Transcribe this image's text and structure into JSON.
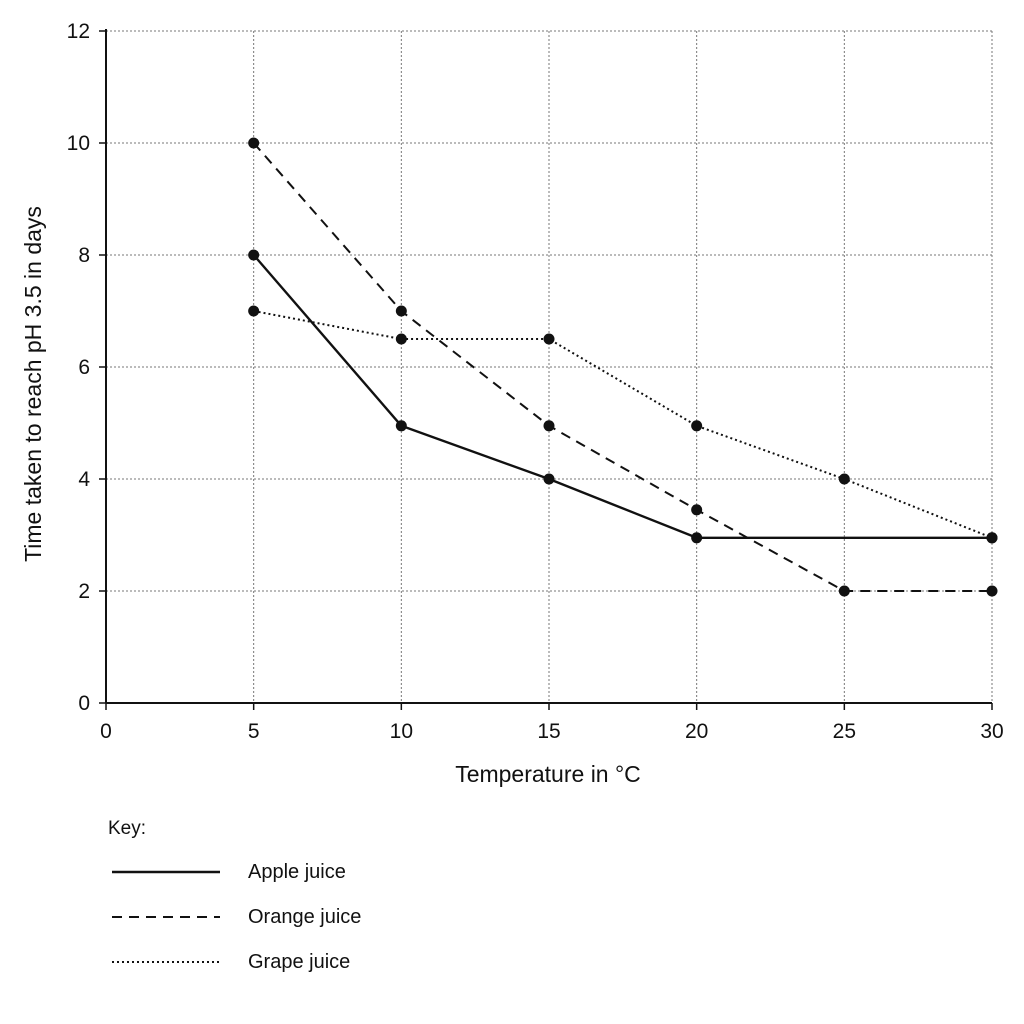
{
  "chart_data": {
    "type": "line",
    "title": "",
    "xlabel": "Temperature in °C",
    "ylabel": "Time taken to reach pH 3.5 in days",
    "xlim": [
      0,
      30
    ],
    "ylim": [
      0,
      12
    ],
    "xticks": [
      "0",
      "5",
      "10",
      "15",
      "20",
      "25",
      "30"
    ],
    "yticks": [
      "0",
      "2",
      "4",
      "6",
      "8",
      "10",
      "12"
    ],
    "grid": true,
    "legend_position": "bottom-left",
    "series": [
      {
        "name": "Apple juice",
        "style": "solid",
        "x": [
          5,
          10,
          15,
          20,
          30
        ],
        "y": [
          8,
          4.95,
          4,
          2.95,
          2.95
        ]
      },
      {
        "name": "Orange juice",
        "style": "dashed",
        "x": [
          5,
          10,
          15,
          20,
          25,
          30
        ],
        "y": [
          10,
          7,
          4.95,
          3.45,
          2,
          2
        ]
      },
      {
        "name": "Grape juice",
        "style": "dotted",
        "x": [
          5,
          10,
          15,
          20,
          25,
          30
        ],
        "y": [
          7,
          6.5,
          6.5,
          4.95,
          4,
          2.95
        ]
      }
    ]
  },
  "legend": {
    "title": "Key:"
  }
}
